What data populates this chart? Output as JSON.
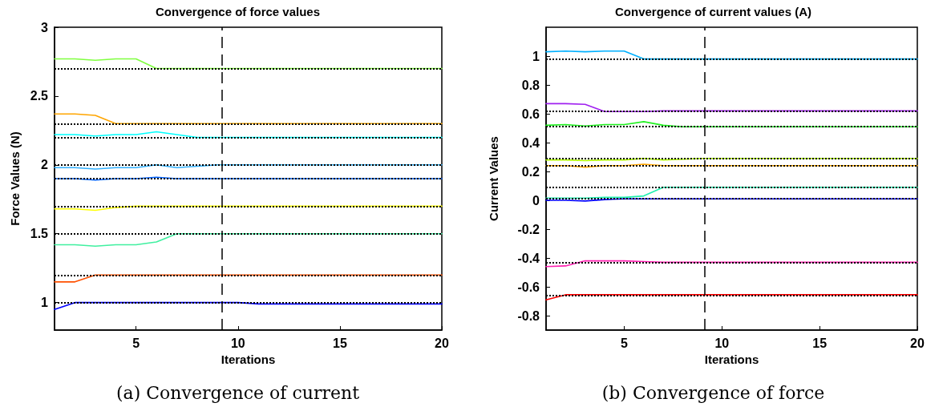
{
  "chart_data": [
    {
      "type": "line",
      "title": "Convergence of force values",
      "xlabel": "Iterations",
      "ylabel": "Force Values (N)",
      "x": [
        1,
        2,
        3,
        4,
        5,
        6,
        7,
        8,
        9,
        10,
        11,
        12,
        13,
        14,
        15,
        16,
        17,
        18,
        19,
        20
      ],
      "xlim": [
        1,
        20
      ],
      "xticks": [
        5,
        10,
        15,
        20
      ],
      "ylim": [
        0.8,
        3
      ],
      "yticks": [
        1,
        1.5,
        2,
        2.5,
        3
      ],
      "grid": false,
      "marker": "none",
      "line_style": "solid",
      "series": [
        {
          "color": "#80ff40",
          "values": [
            2.77,
            2.77,
            2.76,
            2.77,
            2.77,
            2.7,
            2.7,
            2.7,
            2.7,
            2.7,
            2.7,
            2.7,
            2.7,
            2.7,
            2.7,
            2.7,
            2.7,
            2.7,
            2.7,
            2.7
          ]
        },
        {
          "color": "#ffa500",
          "values": [
            2.37,
            2.37,
            2.36,
            2.3,
            2.3,
            2.3,
            2.3,
            2.3,
            2.3,
            2.3,
            2.3,
            2.3,
            2.3,
            2.3,
            2.3,
            2.3,
            2.3,
            2.3,
            2.3,
            2.3
          ]
        },
        {
          "color": "#00ffff",
          "values": [
            2.22,
            2.22,
            2.21,
            2.22,
            2.22,
            2.24,
            2.22,
            2.2,
            2.2,
            2.2,
            2.2,
            2.2,
            2.2,
            2.2,
            2.2,
            2.2,
            2.2,
            2.2,
            2.2,
            2.2
          ]
        },
        {
          "color": "#30b0ff",
          "values": [
            1.98,
            1.98,
            1.97,
            1.98,
            1.98,
            2,
            1.98,
            1.99,
            2,
            2,
            2,
            2,
            2,
            2,
            2,
            2,
            2,
            2,
            2,
            2
          ]
        },
        {
          "color": "#0060ff",
          "values": [
            1.9,
            1.9,
            1.89,
            1.9,
            1.9,
            1.91,
            1.9,
            1.9,
            1.9,
            1.9,
            1.9,
            1.9,
            1.9,
            1.9,
            1.9,
            1.9,
            1.9,
            1.9,
            1.9,
            1.9
          ]
        },
        {
          "color": "#ffff00",
          "values": [
            1.68,
            1.68,
            1.67,
            1.69,
            1.7,
            1.7,
            1.7,
            1.7,
            1.7,
            1.7,
            1.7,
            1.7,
            1.7,
            1.7,
            1.7,
            1.7,
            1.7,
            1.7,
            1.7,
            1.7
          ]
        },
        {
          "color": "#40f0a0",
          "values": [
            1.42,
            1.42,
            1.41,
            1.42,
            1.42,
            1.44,
            1.5,
            1.5,
            1.5,
            1.5,
            1.5,
            1.5,
            1.5,
            1.5,
            1.5,
            1.5,
            1.5,
            1.5,
            1.5,
            1.5
          ]
        },
        {
          "color": "#ff5000",
          "values": [
            1.15,
            1.15,
            1.2,
            1.2,
            1.2,
            1.2,
            1.2,
            1.2,
            1.2,
            1.2,
            1.2,
            1.2,
            1.2,
            1.2,
            1.2,
            1.2,
            1.2,
            1.2,
            1.2,
            1.2
          ]
        },
        {
          "color": "#0000ff",
          "values": [
            0.95,
            1,
            1,
            1,
            1,
            1,
            1,
            1,
            1,
            1,
            0.99,
            0.99,
            0.99,
            0.99,
            0.99,
            0.99,
            0.99,
            0.99,
            0.99,
            0.99
          ]
        }
      ],
      "ref_lines": [
        {
          "axis": "y",
          "value": 2.7,
          "color": "#000000",
          "line_style": "dotted"
        },
        {
          "axis": "y",
          "value": 2.3,
          "color": "#000000",
          "line_style": "dotted"
        },
        {
          "axis": "y",
          "value": 2.2,
          "color": "#000000",
          "line_style": "dotted"
        },
        {
          "axis": "y",
          "value": 2,
          "color": "#000000",
          "line_style": "dotted"
        },
        {
          "axis": "y",
          "value": 1.9,
          "color": "#000000",
          "line_style": "dotted"
        },
        {
          "axis": "y",
          "value": 1.7,
          "color": "#000000",
          "line_style": "dotted"
        },
        {
          "axis": "y",
          "value": 1.5,
          "color": "#000000",
          "line_style": "dotted"
        },
        {
          "axis": "y",
          "value": 1.2,
          "color": "#000000",
          "line_style": "dotted"
        },
        {
          "axis": "y",
          "value": 1,
          "color": "#000000",
          "line_style": "dotted"
        },
        {
          "axis": "x",
          "value": 9.2,
          "color": "#000000",
          "line_style": "dashed"
        }
      ],
      "annotations": [
        "(a) Convergence of current"
      ]
    },
    {
      "type": "line",
      "title": "Convergence of current values (A)",
      "xlabel": "Iterations",
      "ylabel": "Current Values",
      "x": [
        1,
        2,
        3,
        4,
        5,
        6,
        7,
        8,
        9,
        10,
        11,
        12,
        13,
        14,
        15,
        16,
        17,
        18,
        19,
        20
      ],
      "xlim": [
        1,
        20
      ],
      "xticks": [
        5,
        10,
        15,
        20
      ],
      "ylim": [
        -0.9,
        1.2
      ],
      "yticks": [
        -0.8,
        -0.6,
        -0.4,
        -0.2,
        0,
        0.2,
        0.4,
        0.6,
        0.8,
        1
      ],
      "grid": false,
      "marker": "none",
      "line_style": "solid",
      "series": [
        {
          "color": "#00b0ff",
          "values": [
            1.03,
            1.035,
            1.03,
            1.035,
            1.035,
            0.98,
            0.98,
            0.98,
            0.98,
            0.98,
            0.98,
            0.98,
            0.98,
            0.98,
            0.98,
            0.98,
            0.98,
            0.98,
            0.98,
            0.98
          ]
        },
        {
          "color": "#a020f0",
          "values": [
            0.67,
            0.67,
            0.665,
            0.615,
            0.615,
            0.615,
            0.62,
            0.62,
            0.62,
            0.62,
            0.62,
            0.62,
            0.62,
            0.62,
            0.62,
            0.62,
            0.62,
            0.62,
            0.62,
            0.62
          ]
        },
        {
          "color": "#20f020",
          "values": [
            0.52,
            0.525,
            0.515,
            0.525,
            0.525,
            0.545,
            0.52,
            0.51,
            0.51,
            0.51,
            0.51,
            0.51,
            0.51,
            0.51,
            0.51,
            0.51,
            0.51,
            0.51,
            0.51,
            0.51
          ]
        },
        {
          "color": "#b0ff00",
          "values": [
            0.28,
            0.28,
            0.275,
            0.28,
            0.28,
            0.29,
            0.28,
            0.285,
            0.29,
            0.29,
            0.29,
            0.29,
            0.29,
            0.29,
            0.29,
            0.29,
            0.29,
            0.29,
            0.29,
            0.29
          ]
        },
        {
          "color": "#ffa500",
          "values": [
            0.24,
            0.24,
            0.23,
            0.24,
            0.24,
            0.25,
            0.24,
            0.24,
            0.24,
            0.24,
            0.24,
            0.24,
            0.24,
            0.24,
            0.24,
            0.24,
            0.24,
            0.24,
            0.24,
            0.24
          ]
        },
        {
          "color": "#20f0b0",
          "values": [
            0.015,
            0.015,
            0.015,
            0.02,
            0.02,
            0.03,
            0.09,
            0.09,
            0.09,
            0.09,
            0.09,
            0.09,
            0.09,
            0.09,
            0.09,
            0.09,
            0.09,
            0.09,
            0.09,
            0.09
          ]
        },
        {
          "color": "#0000ff",
          "values": [
            0,
            0,
            -0.005,
            0.005,
            0.01,
            0.01,
            0.01,
            0.01,
            0.01,
            0.01,
            0.01,
            0.01,
            0.01,
            0.01,
            0.01,
            0.01,
            0.01,
            0.01,
            0.01,
            0.01
          ]
        },
        {
          "color": "#ff20b0",
          "values": [
            -0.46,
            -0.455,
            -0.42,
            -0.42,
            -0.42,
            -0.425,
            -0.43,
            -0.43,
            -0.43,
            -0.43,
            -0.43,
            -0.43,
            -0.43,
            -0.43,
            -0.43,
            -0.43,
            -0.43,
            -0.43,
            -0.43,
            -0.43
          ]
        },
        {
          "color": "#ff0000",
          "values": [
            -0.69,
            -0.655,
            -0.655,
            -0.655,
            -0.655,
            -0.655,
            -0.655,
            -0.655,
            -0.655,
            -0.655,
            -0.655,
            -0.655,
            -0.655,
            -0.655,
            -0.655,
            -0.655,
            -0.655,
            -0.655,
            -0.655,
            -0.655
          ]
        }
      ],
      "ref_lines": [
        {
          "axis": "y",
          "value": 0.98,
          "color": "#000000",
          "line_style": "dotted"
        },
        {
          "axis": "y",
          "value": 0.62,
          "color": "#000000",
          "line_style": "dotted"
        },
        {
          "axis": "y",
          "value": 0.51,
          "color": "#000000",
          "line_style": "dotted"
        },
        {
          "axis": "y",
          "value": 0.29,
          "color": "#000000",
          "line_style": "dotted"
        },
        {
          "axis": "y",
          "value": 0.24,
          "color": "#000000",
          "line_style": "dotted"
        },
        {
          "axis": "y",
          "value": 0.09,
          "color": "#000000",
          "line_style": "dotted"
        },
        {
          "axis": "y",
          "value": 0.01,
          "color": "#000000",
          "line_style": "dotted"
        },
        {
          "axis": "y",
          "value": -0.43,
          "color": "#000000",
          "line_style": "dotted"
        },
        {
          "axis": "y",
          "value": -0.655,
          "color": "#000000",
          "line_style": "dotted"
        },
        {
          "axis": "x",
          "value": 9.1,
          "color": "#000000",
          "line_style": "dashed"
        }
      ],
      "annotations": [
        "(b) Convergence of force"
      ]
    }
  ]
}
